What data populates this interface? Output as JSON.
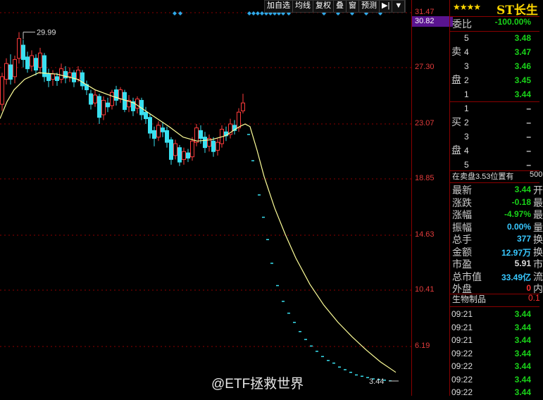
{
  "toolbar": {
    "items": [
      "加自选",
      "均线",
      "复权",
      "叠",
      "窗",
      "预测"
    ]
  },
  "axis": {
    "labels": [
      "31.47",
      "27.30",
      "23.07",
      "18.85",
      "14.63",
      "10.41",
      "6.19"
    ],
    "highlight": "30.82"
  },
  "chart": {
    "high_label": "29.99",
    "last_label": "3.44",
    "low_ylim": [
      3.44,
      31.47
    ]
  },
  "stock": {
    "stars": "★★★★",
    "name": "ST长生"
  },
  "weibi": {
    "label": "委比",
    "value": "-100.00%"
  },
  "sell": {
    "side": "卖盘",
    "levels": [
      {
        "n": "5",
        "p": "3.48"
      },
      {
        "n": "4",
        "p": "3.47"
      },
      {
        "n": "3",
        "p": "3.46"
      },
      {
        "n": "2",
        "p": "3.45"
      },
      {
        "n": "1",
        "p": "3.44"
      }
    ]
  },
  "buy": {
    "side": "买盘",
    "levels": [
      {
        "n": "1",
        "p": "–"
      },
      {
        "n": "2",
        "p": "–"
      },
      {
        "n": "3",
        "p": "–"
      },
      {
        "n": "4",
        "p": "–"
      },
      {
        "n": "5",
        "p": "–"
      }
    ]
  },
  "note": "在卖盘3.53位置有",
  "note_tail": "500",
  "stats": [
    {
      "k": "最新",
      "v": "3.44",
      "cls": "g",
      "t": "开"
    },
    {
      "k": "涨跌",
      "v": "-0.18",
      "cls": "g",
      "t": "最"
    },
    {
      "k": "涨幅",
      "v": "-4.97%",
      "cls": "g",
      "t": "最"
    },
    {
      "k": "振幅",
      "v": "0.00%",
      "cls": "c",
      "t": "量"
    },
    {
      "k": "总手",
      "v": "377",
      "cls": "c",
      "t": "换"
    },
    {
      "k": "金额",
      "v": "12.97万",
      "cls": "c",
      "t": "换"
    },
    {
      "k": "市盈",
      "v": "5.91",
      "cls": "w",
      "t": "市"
    },
    {
      "k": "总市值",
      "v": "33.49亿",
      "cls": "c",
      "t": "流"
    },
    {
      "k": "外盘",
      "v": "0",
      "cls": "r",
      "t": "内"
    }
  ],
  "industry": {
    "name": "生物制品",
    "tail": "0.1"
  },
  "ticks": [
    {
      "t": "09:21",
      "p": "3.44"
    },
    {
      "t": "09:21",
      "p": "3.44"
    },
    {
      "t": "09:21",
      "p": "3.44"
    },
    {
      "t": "09:22",
      "p": "3.44"
    },
    {
      "t": "09:22",
      "p": "3.44"
    },
    {
      "t": "09:22",
      "p": "3.44"
    },
    {
      "t": "09:22",
      "p": "3.44"
    }
  ],
  "watermark": "@ETF拯救世界"
}
